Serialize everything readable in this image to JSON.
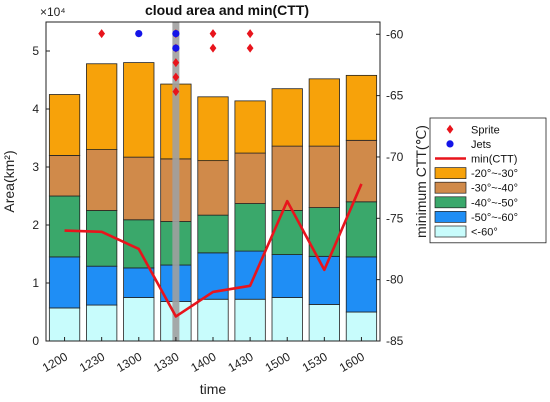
{
  "chart_data": {
    "type": "bar",
    "title": "cloud area and min(CTT)",
    "xlabel": "time",
    "ylabel_left": "Area(km²)",
    "ylabel_right": "minimum CTT(℃)",
    "y_exponent_label": "×10⁴",
    "categories": [
      "1200",
      "1230",
      "1300",
      "1330",
      "1400",
      "1430",
      "1500",
      "1530",
      "1600"
    ],
    "ylim_left": [
      0,
      5.5
    ],
    "yticks_left": [
      "0",
      "1",
      "2",
      "3",
      "4",
      "5"
    ],
    "ylim_right": [
      -85,
      -59
    ],
    "yticks_right": [
      "-85",
      "-80",
      "-75",
      "-70",
      "-65",
      "-60"
    ],
    "stacked_series": [
      {
        "name": "<-60°",
        "color": "#c8fcfc",
        "values": [
          0.57,
          0.62,
          0.75,
          0.68,
          0.72,
          0.72,
          0.75,
          0.63,
          0.5
        ]
      },
      {
        "name": "-50°~-60°",
        "color": "#1f8ef5",
        "values": [
          0.88,
          0.67,
          0.51,
          0.63,
          0.8,
          0.83,
          0.74,
          0.83,
          0.95
        ]
      },
      {
        "name": "-40°~-50°",
        "color": "#3aa86b",
        "values": [
          1.05,
          0.96,
          0.83,
          0.75,
          0.65,
          0.82,
          0.76,
          0.84,
          0.95
        ]
      },
      {
        "name": "-30°~-40°",
        "color": "#d08a4a",
        "values": [
          0.7,
          1.05,
          1.08,
          1.08,
          0.94,
          0.87,
          1.11,
          1.06,
          1.06
        ]
      },
      {
        "name": "-20°~-30°",
        "color": "#f7a20a",
        "values": [
          1.05,
          1.48,
          1.63,
          1.29,
          1.1,
          0.9,
          0.99,
          1.16,
          1.12
        ]
      }
    ],
    "min_ctt": {
      "name": "min(CTT)",
      "color": "#e8141c",
      "values": [
        -76.0,
        -76.1,
        -77.5,
        -83.0,
        -81.0,
        -80.5,
        -73.6,
        -79.2,
        -72.2
      ]
    },
    "sprites": {
      "name": "Sprite",
      "color": "#e8141c",
      "points": [
        [
          1,
          5.3
        ],
        [
          3,
          5.3
        ],
        [
          3,
          5.05
        ],
        [
          3,
          4.8
        ],
        [
          3,
          4.55
        ],
        [
          3,
          4.3
        ],
        [
          4,
          5.3
        ],
        [
          4,
          5.05
        ],
        [
          5,
          5.3
        ],
        [
          5,
          5.05
        ]
      ]
    },
    "jets": {
      "name": "Jets",
      "color": "#1414e8",
      "points": [
        [
          2,
          5.3
        ],
        [
          3,
          5.3
        ],
        [
          3,
          5.05
        ]
      ]
    },
    "highlight_category": "1330",
    "legend_position": "right-middle",
    "grid": false
  }
}
